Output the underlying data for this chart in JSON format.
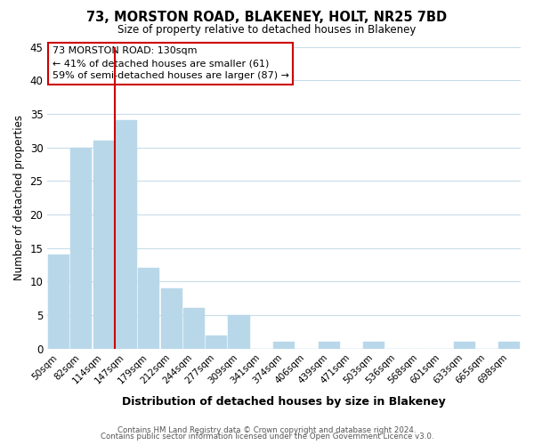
{
  "title": "73, MORSTON ROAD, BLAKENEY, HOLT, NR25 7BD",
  "subtitle": "Size of property relative to detached houses in Blakeney",
  "xlabel": "Distribution of detached houses by size in Blakeney",
  "ylabel": "Number of detached properties",
  "bar_labels": [
    "50sqm",
    "82sqm",
    "114sqm",
    "147sqm",
    "179sqm",
    "212sqm",
    "244sqm",
    "277sqm",
    "309sqm",
    "341sqm",
    "374sqm",
    "406sqm",
    "439sqm",
    "471sqm",
    "503sqm",
    "536sqm",
    "568sqm",
    "601sqm",
    "633sqm",
    "665sqm",
    "698sqm"
  ],
  "bar_values": [
    14,
    30,
    31,
    34,
    12,
    9,
    6,
    2,
    5,
    0,
    1,
    0,
    1,
    0,
    1,
    0,
    0,
    0,
    1,
    0,
    1
  ],
  "bar_color": "#b8d8ea",
  "vline_color": "#cc0000",
  "vline_x_index": 2,
  "ylim": [
    0,
    45
  ],
  "yticks": [
    0,
    5,
    10,
    15,
    20,
    25,
    30,
    35,
    40,
    45
  ],
  "annotation_title": "73 MORSTON ROAD: 130sqm",
  "annotation_line1": "← 41% of detached houses are smaller (61)",
  "annotation_line2": "59% of semi-detached houses are larger (87) →",
  "footer1": "Contains HM Land Registry data © Crown copyright and database right 2024.",
  "footer2": "Contains public sector information licensed under the Open Government Licence v3.0.",
  "background_color": "#ffffff",
  "grid_color": "#c8dce8"
}
